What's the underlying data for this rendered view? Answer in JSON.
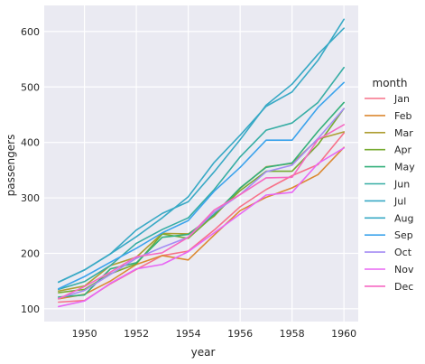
{
  "chart_data": {
    "type": "line",
    "xlabel": "year",
    "ylabel": "passengers",
    "x": [
      1949,
      1950,
      1951,
      1952,
      1953,
      1954,
      1955,
      1956,
      1957,
      1958,
      1959,
      1960
    ],
    "xlim": [
      1948.45,
      1960.55
    ],
    "ylim": [
      77,
      647
    ],
    "xticks": [
      1950,
      1952,
      1954,
      1956,
      1958,
      1960
    ],
    "yticks": [
      100,
      200,
      300,
      400,
      500,
      600
    ],
    "grid": true,
    "background": "#eaeaf2",
    "legend": {
      "title": "month",
      "position": "right"
    },
    "series": [
      {
        "name": "Jan",
        "color": "#f77189",
        "values": [
          112,
          115,
          145,
          171,
          196,
          204,
          242,
          284,
          315,
          340,
          360,
          417
        ]
      },
      {
        "name": "Feb",
        "color": "#dc8932",
        "values": [
          118,
          126,
          150,
          180,
          196,
          188,
          233,
          277,
          301,
          318,
          342,
          391
        ]
      },
      {
        "name": "Mar",
        "color": "#ae9d31",
        "values": [
          132,
          141,
          178,
          193,
          236,
          235,
          267,
          317,
          356,
          362,
          406,
          419
        ]
      },
      {
        "name": "Apr",
        "color": "#77ab31",
        "values": [
          129,
          135,
          163,
          181,
          235,
          227,
          269,
          313,
          348,
          348,
          396,
          461
        ]
      },
      {
        "name": "May",
        "color": "#33b07a",
        "values": [
          121,
          125,
          172,
          183,
          229,
          234,
          270,
          318,
          355,
          363,
          420,
          472
        ]
      },
      {
        "name": "Jun",
        "color": "#36ada4",
        "values": [
          135,
          149,
          178,
          218,
          243,
          264,
          315,
          374,
          422,
          435,
          472,
          535
        ]
      },
      {
        "name": "Jul",
        "color": "#38a9c5",
        "values": [
          148,
          170,
          199,
          230,
          264,
          302,
          364,
          413,
          465,
          491,
          548,
          622
        ]
      },
      {
        "name": "Aug",
        "color": "#38a9c5",
        "values": [
          148,
          170,
          199,
          242,
          272,
          293,
          347,
          405,
          467,
          505,
          559,
          606
        ]
      },
      {
        "name": "Sep",
        "color": "#3ba3ec",
        "values": [
          136,
          158,
          184,
          209,
          237,
          259,
          312,
          355,
          404,
          404,
          463,
          508
        ]
      },
      {
        "name": "Oct",
        "color": "#a48cf4",
        "values": [
          119,
          133,
          162,
          191,
          211,
          229,
          274,
          306,
          347,
          359,
          407,
          461
        ]
      },
      {
        "name": "Nov",
        "color": "#e866f4",
        "values": [
          104,
          114,
          146,
          172,
          180,
          203,
          237,
          271,
          305,
          310,
          362,
          390
        ]
      },
      {
        "name": "Dec",
        "color": "#f668c2",
        "values": [
          118,
          140,
          166,
          194,
          201,
          229,
          278,
          306,
          336,
          337,
          405,
          432
        ]
      }
    ]
  }
}
